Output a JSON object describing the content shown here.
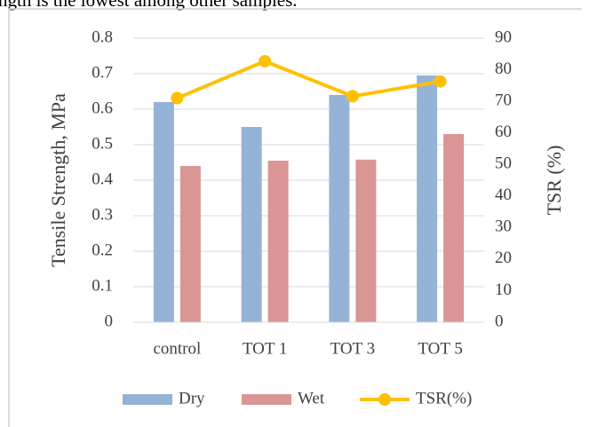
{
  "caption_fragment": "ngth is the lowest among other samples.",
  "chart_data": {
    "type": "bar",
    "categories": [
      "control",
      "TOT 1",
      "TOT 3",
      "TOT 5"
    ],
    "series": [
      {
        "name": "Dry",
        "color": "#95b3d7",
        "values": [
          0.62,
          0.55,
          0.64,
          0.695
        ]
      },
      {
        "name": "Wet",
        "color": "#d99694",
        "values": [
          0.44,
          0.455,
          0.458,
          0.53
        ]
      },
      {
        "name": "TSR(%)",
        "color": "#ffc000",
        "type": "line",
        "axis": "y2",
        "values": [
          71,
          82.7,
          71.6,
          76.3
        ]
      }
    ],
    "ylabel": "Tensile Strength, MPa",
    "y2label": "TSR (%)",
    "ylim": [
      0,
      0.8
    ],
    "yticks": [
      0,
      0.1,
      0.2,
      0.3,
      0.4,
      0.5,
      0.6,
      0.7,
      0.8
    ],
    "y2lim": [
      0,
      90
    ],
    "y2ticks": [
      0,
      10,
      20,
      30,
      40,
      50,
      60,
      70,
      80,
      90
    ],
    "grid": true,
    "legend": "bottom"
  }
}
